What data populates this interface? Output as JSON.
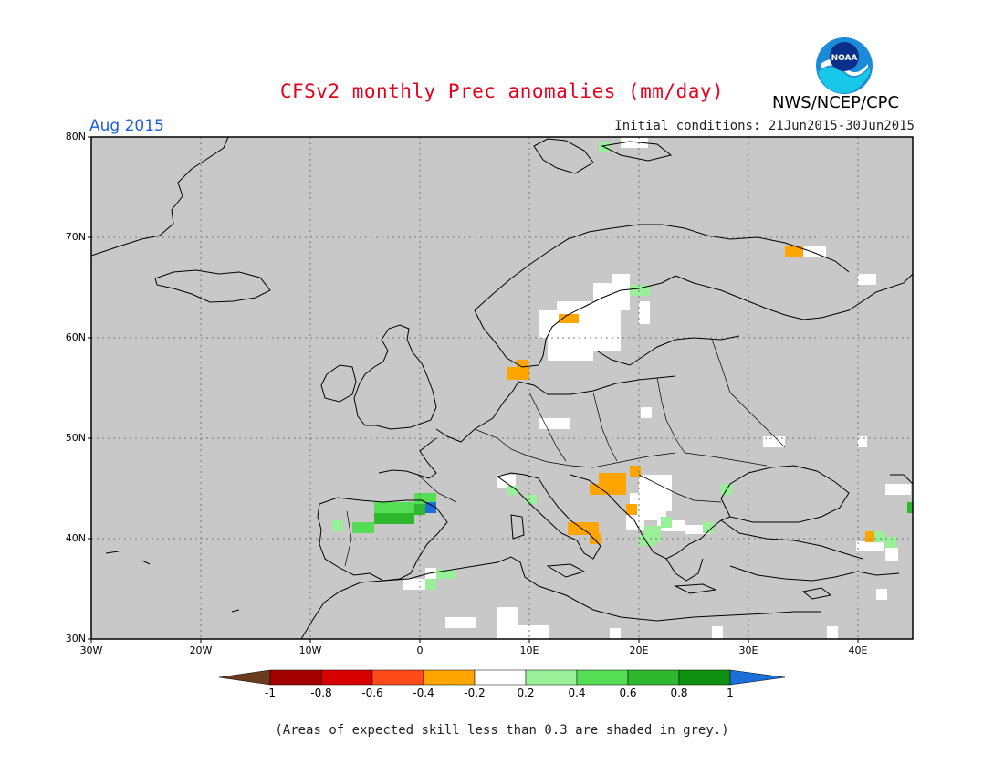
{
  "header": {
    "title": "CFSv2 monthly Prec anomalies (mm/day)",
    "org": "NWS/NCEP/CPC",
    "month": "Aug 2015",
    "initial_conditions": "Initial conditions: 21Jun2015-30Jun2015",
    "logo_text": "NOAA"
  },
  "axes": {
    "lat_labels": [
      "80N",
      "70N",
      "60N",
      "50N",
      "40N",
      "30N"
    ],
    "lon_labels": [
      "30W",
      "20W",
      "10W",
      "0",
      "10E",
      "20E",
      "30E",
      "40E"
    ]
  },
  "colors": {
    "land_mask": "#c8c8c8",
    "below_neg04": "#ffa500",
    "near_normal": "#ffffff",
    "above_02": "#88f088",
    "above_04": "#44dd44",
    "above_06": "#22b422",
    "above_08": "#109010",
    "above_1": "#1a6fd9"
  },
  "colorbar": {
    "labels": [
      "-1",
      "-0.8",
      "-0.6",
      "-0.4",
      "-0.2",
      "0.2",
      "0.4",
      "0.6",
      "0.8",
      "1"
    ],
    "colors": [
      "#6b3a1f",
      "#a50000",
      "#d80000",
      "#ff4b1a",
      "#ffa500",
      "#ffffff",
      "#99f099",
      "#55dd55",
      "#2db82d",
      "#109010",
      "#1a6fd9"
    ]
  },
  "footnote": "(Areas of expected skill less than 0.3 are shaded in grey.)"
}
